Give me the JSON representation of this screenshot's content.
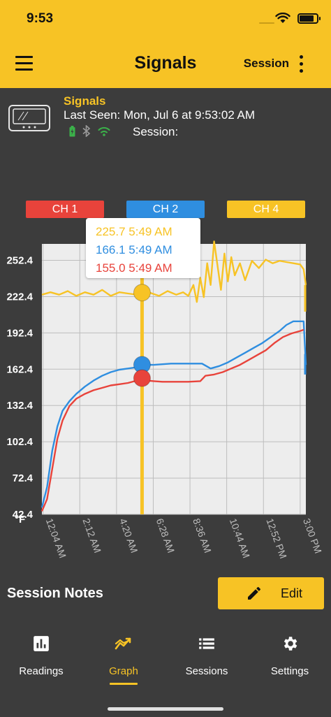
{
  "status": {
    "time": "9:53",
    "battery_level": 0.85
  },
  "header": {
    "title": "Signals",
    "session_label": "Session"
  },
  "device": {
    "name": "Signals",
    "last_seen": "Last Seen: Mon, Jul 6 at 9:53:02 AM",
    "session_label": "Session:"
  },
  "channels": [
    {
      "label": "CH 1",
      "color": "#e8433b"
    },
    {
      "label": "CH 2",
      "color": "#2f8ee0"
    },
    {
      "label": "CH 4",
      "color": "#f7c325"
    }
  ],
  "tooltip": {
    "ch4": "225.7 5:49 AM",
    "ch2": "166.1 5:49 AM",
    "ch1": "155.0 5:49 AM"
  },
  "chart_data": {
    "type": "line",
    "unit_label": "°F",
    "ylim": [
      42.4,
      266
    ],
    "y_ticks": [
      42.4,
      72.4,
      102.4,
      132.4,
      162.4,
      192.4,
      222.4,
      252.4
    ],
    "y_tick_labels": [
      "42.4",
      "72.4",
      "102.4",
      "132.4",
      "162.4",
      "192.4",
      "222.4",
      "252.4"
    ],
    "x_range_hours": [
      0,
      15.33
    ],
    "x_ticks_hours": [
      0.0667,
      2.2,
      4.333,
      6.467,
      8.6,
      10.733,
      12.867,
      15.0
    ],
    "x_tick_labels": [
      "12:04 AM",
      "2:12 AM",
      "4:20 AM",
      "6:28 AM",
      "8:36 AM",
      "10:44 AM",
      "12:52 PM",
      "3:00 PM"
    ],
    "cursor": {
      "x_hours": 5.817
    },
    "grid": true,
    "series": [
      {
        "name": "CH 1",
        "color": "#e8433b",
        "points": [
          [
            0,
            45
          ],
          [
            0.3,
            55
          ],
          [
            0.6,
            80
          ],
          [
            0.9,
            105
          ],
          [
            1.2,
            120
          ],
          [
            1.6,
            132
          ],
          [
            2.0,
            138
          ],
          [
            2.5,
            142
          ],
          [
            3.0,
            145
          ],
          [
            3.5,
            147
          ],
          [
            4.0,
            149
          ],
          [
            4.5,
            150
          ],
          [
            5.0,
            151
          ],
          [
            5.5,
            153
          ],
          [
            5.817,
            155
          ],
          [
            6.1,
            153
          ],
          [
            6.5,
            152.5
          ],
          [
            7.0,
            152
          ],
          [
            7.5,
            152
          ],
          [
            8.0,
            152
          ],
          [
            8.5,
            152
          ],
          [
            9.2,
            152.5
          ],
          [
            9.5,
            157
          ],
          [
            10.0,
            158
          ],
          [
            10.5,
            160
          ],
          [
            11.0,
            163
          ],
          [
            11.5,
            166
          ],
          [
            12.0,
            170
          ],
          [
            12.5,
            174
          ],
          [
            13.0,
            178
          ],
          [
            13.5,
            184
          ],
          [
            14.0,
            189
          ],
          [
            14.5,
            192
          ],
          [
            15.0,
            194
          ],
          [
            15.2,
            195
          ]
        ]
      },
      {
        "name": "CH 2",
        "color": "#2f8ee0",
        "points": [
          [
            0,
            48
          ],
          [
            0.3,
            65
          ],
          [
            0.6,
            95
          ],
          [
            0.9,
            115
          ],
          [
            1.2,
            128
          ],
          [
            1.6,
            136
          ],
          [
            2.0,
            142
          ],
          [
            2.5,
            148
          ],
          [
            3.0,
            153
          ],
          [
            3.5,
            157
          ],
          [
            4.0,
            160
          ],
          [
            4.5,
            162
          ],
          [
            5.0,
            163
          ],
          [
            5.5,
            164
          ],
          [
            5.817,
            166.1
          ],
          [
            6.1,
            166
          ],
          [
            6.5,
            166
          ],
          [
            7.0,
            166.5
          ],
          [
            7.5,
            167
          ],
          [
            8.0,
            167
          ],
          [
            8.5,
            167
          ],
          [
            9.3,
            167
          ],
          [
            9.8,
            163
          ],
          [
            10.3,
            165
          ],
          [
            10.8,
            168
          ],
          [
            11.3,
            172
          ],
          [
            11.8,
            176
          ],
          [
            12.3,
            180
          ],
          [
            12.8,
            184
          ],
          [
            13.3,
            189
          ],
          [
            13.8,
            194
          ],
          [
            14.2,
            199
          ],
          [
            14.6,
            202
          ],
          [
            15.2,
            202
          ],
          [
            15.33,
            166
          ]
        ]
      },
      {
        "name": "CH 4",
        "color": "#f7c325",
        "points": [
          [
            0,
            224
          ],
          [
            0.5,
            226
          ],
          [
            1.0,
            224
          ],
          [
            1.5,
            227
          ],
          [
            2.0,
            223
          ],
          [
            2.5,
            226
          ],
          [
            3.0,
            224
          ],
          [
            3.5,
            228
          ],
          [
            4.0,
            223
          ],
          [
            4.5,
            226
          ],
          [
            5.0,
            225
          ],
          [
            5.5,
            224
          ],
          [
            5.817,
            225.7
          ],
          [
            6.2,
            226
          ],
          [
            6.8,
            223
          ],
          [
            7.3,
            227
          ],
          [
            7.8,
            224
          ],
          [
            8.2,
            226
          ],
          [
            8.5,
            223
          ],
          [
            8.8,
            232
          ],
          [
            9.0,
            218
          ],
          [
            9.2,
            238
          ],
          [
            9.4,
            222
          ],
          [
            9.6,
            250
          ],
          [
            9.8,
            232
          ],
          [
            10.0,
            268
          ],
          [
            10.2,
            248
          ],
          [
            10.4,
            228
          ],
          [
            10.6,
            258
          ],
          [
            10.8,
            235
          ],
          [
            11.0,
            255
          ],
          [
            11.2,
            240
          ],
          [
            11.5,
            250
          ],
          [
            11.8,
            236
          ],
          [
            12.2,
            252
          ],
          [
            12.6,
            246
          ],
          [
            13.0,
            253
          ],
          [
            13.4,
            250
          ],
          [
            13.8,
            252
          ],
          [
            14.2,
            251
          ],
          [
            14.6,
            250
          ],
          [
            15.0,
            249
          ],
          [
            15.2,
            245
          ],
          [
            15.33,
            232
          ]
        ]
      }
    ]
  },
  "notes": {
    "title": "Session Notes",
    "edit_label": "Edit"
  },
  "nav": [
    {
      "label": "Readings",
      "icon": "bar-chart-icon"
    },
    {
      "label": "Graph",
      "icon": "trend-icon"
    },
    {
      "label": "Sessions",
      "icon": "list-icon"
    },
    {
      "label": "Settings",
      "icon": "gear-icon"
    }
  ]
}
